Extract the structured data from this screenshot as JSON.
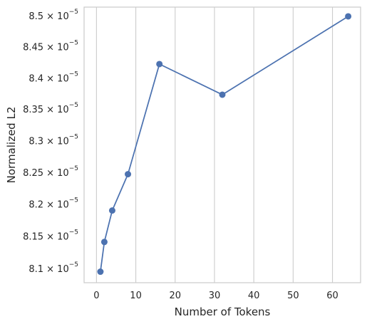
{
  "chart_data": {
    "type": "line",
    "title": "",
    "xlabel": "Number of Tokens",
    "ylabel": "Normalized L2",
    "xlim": [
      -3.15,
      67.15
    ],
    "ylim": [
      8.0735,
      8.5095
    ],
    "y_scale_exponent": -5,
    "y_scale": "log",
    "grid": "vertical",
    "legend": "none",
    "x_ticks": [
      0,
      10,
      20,
      30,
      40,
      50,
      60
    ],
    "y_ticks": [
      8.1,
      8.15,
      8.2,
      8.25,
      8.3,
      8.35,
      8.4,
      8.45,
      8.5
    ],
    "y_tick_labels": [
      "8.1 × 10",
      "8.15 × 10",
      "8.2 × 10",
      "8.25 × 10",
      "8.3 × 10",
      "8.35 × 10",
      "8.4 × 10",
      "8.45 × 10",
      "8.5 × 10"
    ],
    "y_tick_exponent_label": "−5",
    "series": [
      {
        "color": "#4c72b0",
        "x": [
          1,
          2,
          4,
          8,
          16,
          32,
          64
        ],
        "y": [
          8.0905,
          8.1365,
          8.1855,
          8.2425,
          8.4175,
          8.3685,
          8.4945
        ]
      }
    ]
  },
  "colors": {
    "line": "#4c72b0",
    "grid": "#cccccc",
    "spine": "#cccccc"
  }
}
